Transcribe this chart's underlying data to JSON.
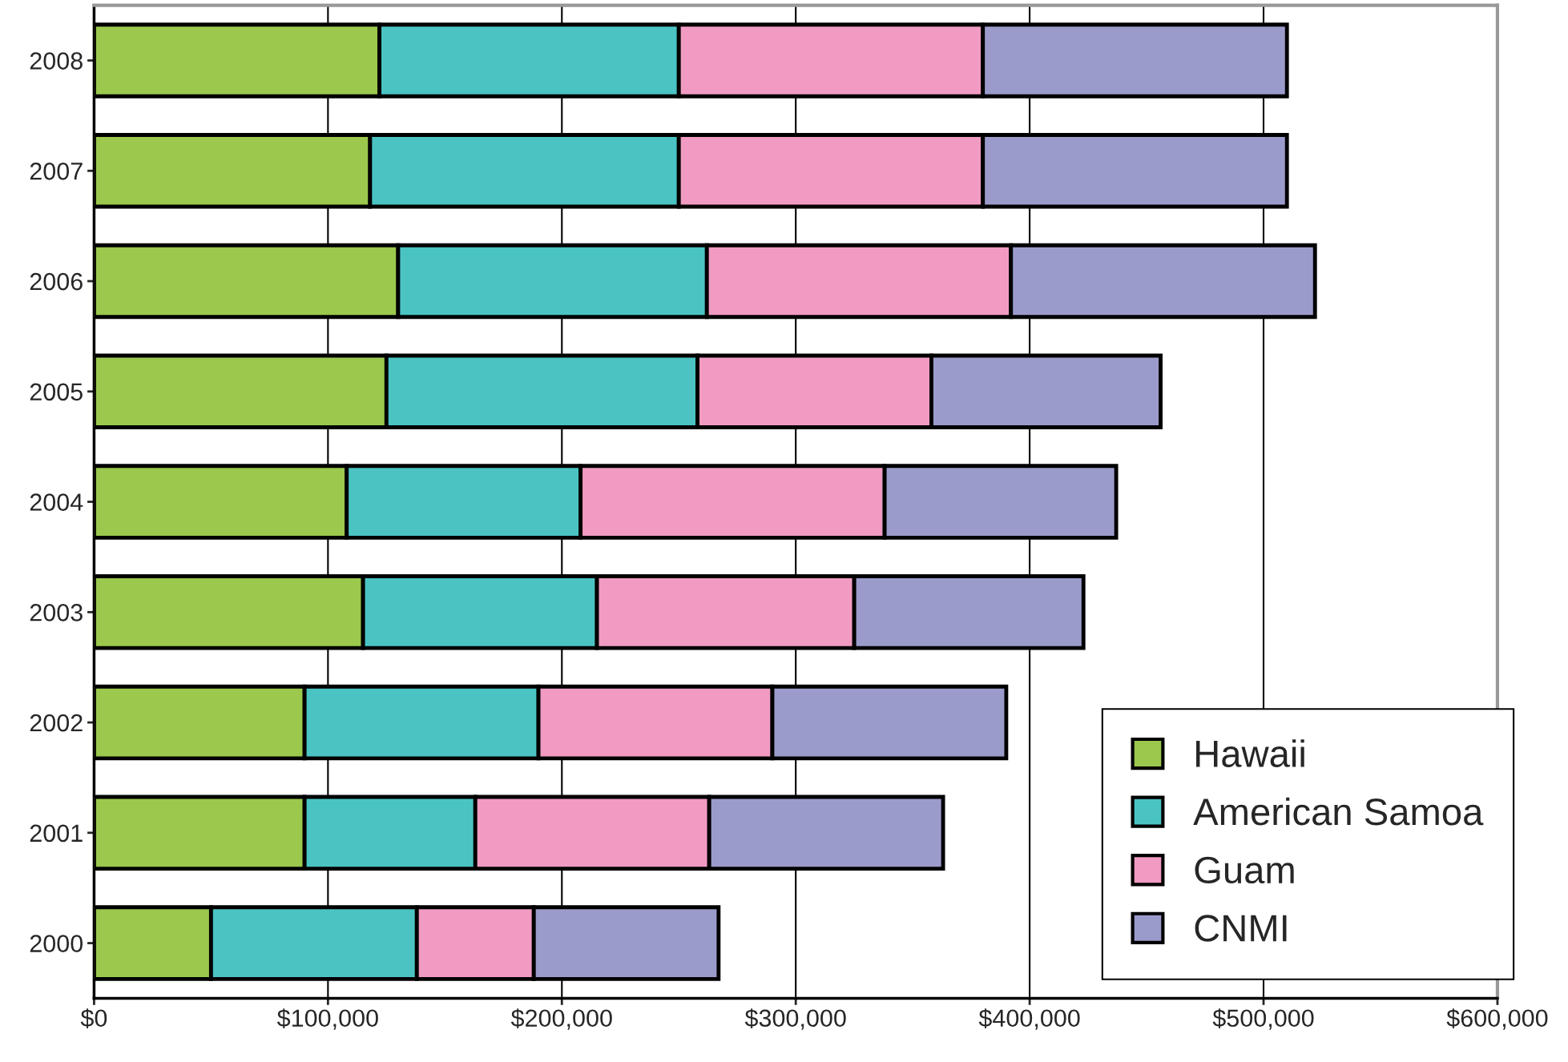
{
  "chart_data": {
    "type": "bar",
    "orientation": "horizontal",
    "stacked": true,
    "categories": [
      "2008",
      "2007",
      "2006",
      "2005",
      "2004",
      "2003",
      "2002",
      "2001",
      "2000"
    ],
    "series": [
      {
        "name": "Hawaii",
        "color": "#9bc84d",
        "values": [
          122000,
          118000,
          130000,
          125000,
          108000,
          115000,
          90000,
          90000,
          50000
        ]
      },
      {
        "name": "American Samoa",
        "color": "#4bc3c3",
        "values": [
          128000,
          132000,
          132000,
          133000,
          100000,
          100000,
          100000,
          73000,
          88000
        ]
      },
      {
        "name": "Guam",
        "color": "#f19bc2",
        "values": [
          130000,
          130000,
          130000,
          100000,
          130000,
          110000,
          100000,
          100000,
          50000
        ]
      },
      {
        "name": "CNMI",
        "color": "#9b9bcb",
        "values": [
          130000,
          130000,
          130000,
          98000,
          99000,
          98000,
          100000,
          100000,
          79000
        ]
      }
    ],
    "xlim": [
      0,
      600000
    ],
    "xticks": [
      {
        "value": 0,
        "label": "$0"
      },
      {
        "value": 100000,
        "label": "$100,000"
      },
      {
        "value": 200000,
        "label": "$200,000"
      },
      {
        "value": 300000,
        "label": "$300,000"
      },
      {
        "value": 400000,
        "label": "$400,000"
      },
      {
        "value": 500000,
        "label": "$500,000"
      },
      {
        "value": 600000,
        "label": "$600,000"
      }
    ],
    "grid": "x",
    "legend": "bottom right"
  }
}
